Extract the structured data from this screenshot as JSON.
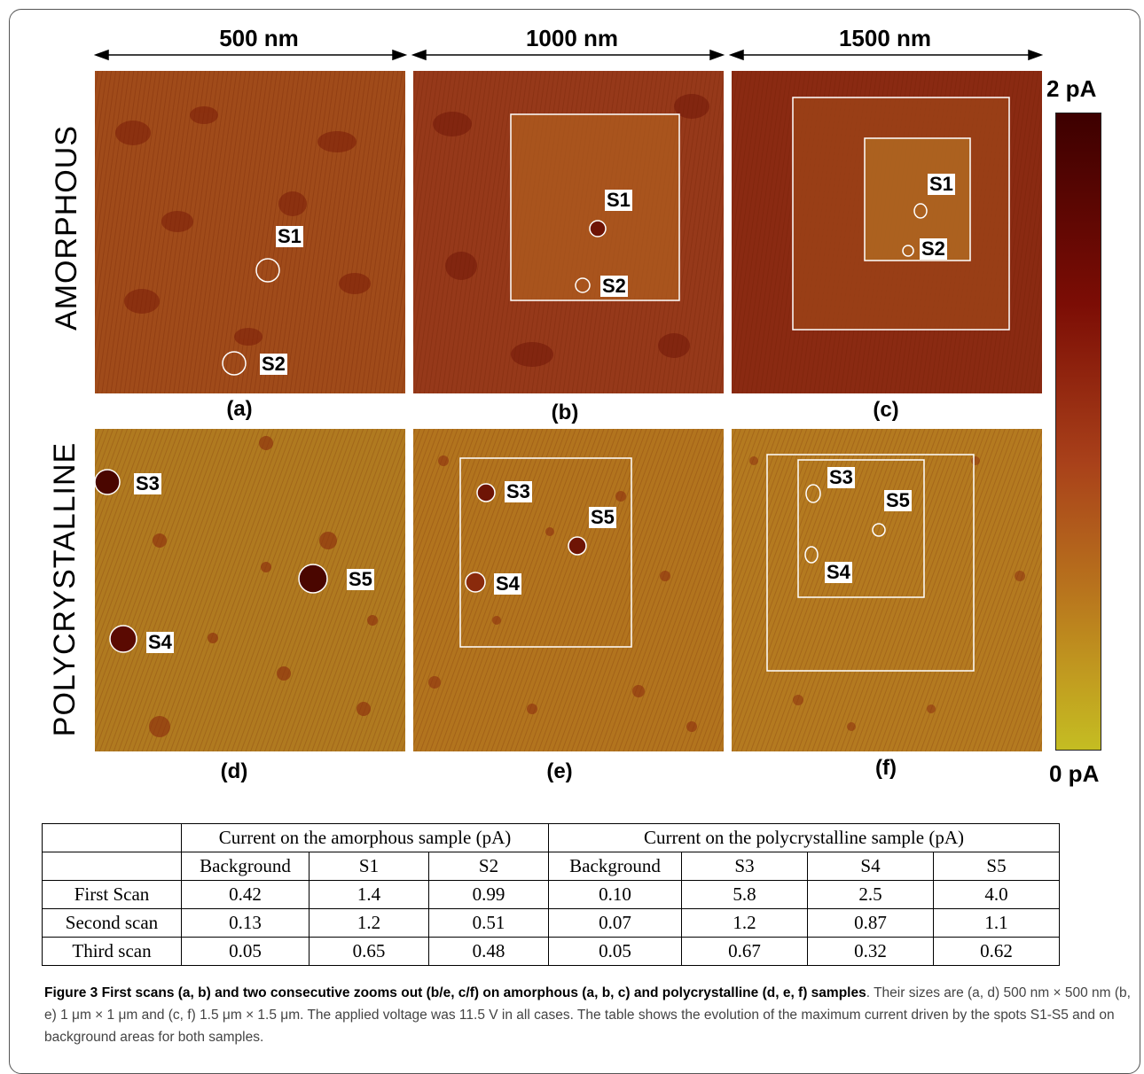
{
  "scales": [
    "500 nm",
    "1000 nm",
    "1500 nm"
  ],
  "row_labels": [
    "AMORPHOUS",
    "POLYCRYSTALLINE"
  ],
  "panel_labels": [
    "(a)",
    "(b)",
    "(c)",
    "(d)",
    "(e)",
    "(f)"
  ],
  "colorbar": {
    "max_label": "2 pA",
    "min_label": "0 pA",
    "colors": [
      "#3d0000",
      "#7c0d05",
      "#a9411a",
      "#b8741d",
      "#c4bd22"
    ]
  },
  "spot_labels": {
    "a": [
      "S1",
      "S2"
    ],
    "b": [
      "S1",
      "S2"
    ],
    "c": [
      "S1",
      "S2"
    ],
    "d": [
      "S3",
      "S5",
      "S4"
    ],
    "e": [
      "S3",
      "S5",
      "S4"
    ],
    "f": [
      "S3",
      "S5",
      "S4"
    ]
  },
  "table": {
    "group_headers": [
      "Current on the amorphous sample (pA)",
      "Current on the polycrystalline sample (pA)"
    ],
    "columns": [
      "Background",
      "S1",
      "S2",
      "Background",
      "S3",
      "S4",
      "S5"
    ],
    "rows": [
      {
        "label": "First Scan",
        "values": [
          "0.42",
          "1.4",
          "0.99",
          "0.10",
          "5.8",
          "2.5",
          "4.0"
        ]
      },
      {
        "label": "Second scan",
        "values": [
          "0.13",
          "1.2",
          "0.51",
          "0.07",
          "1.2",
          "0.87",
          "1.1"
        ]
      },
      {
        "label": "Third scan",
        "values": [
          "0.05",
          "0.65",
          "0.48",
          "0.05",
          "0.67",
          "0.32",
          "0.62"
        ]
      }
    ]
  },
  "caption": {
    "bold": "Figure 3 First scans (a, b) and two consecutive zooms out (b/e, c/f) on amorphous (a, b, c) and polycrystalline (d, e, f) samples",
    "text": ". Their sizes are (a, d) 500 nm × 500 nm (b, e) 1 μm × 1 μm and (c, f) 1.5 μm × 1.5 μm. The applied voltage was 11.5 V in all cases. The table shows the evolution of the maximum current driven by the spots S1-S5 and on background areas for both samples."
  }
}
